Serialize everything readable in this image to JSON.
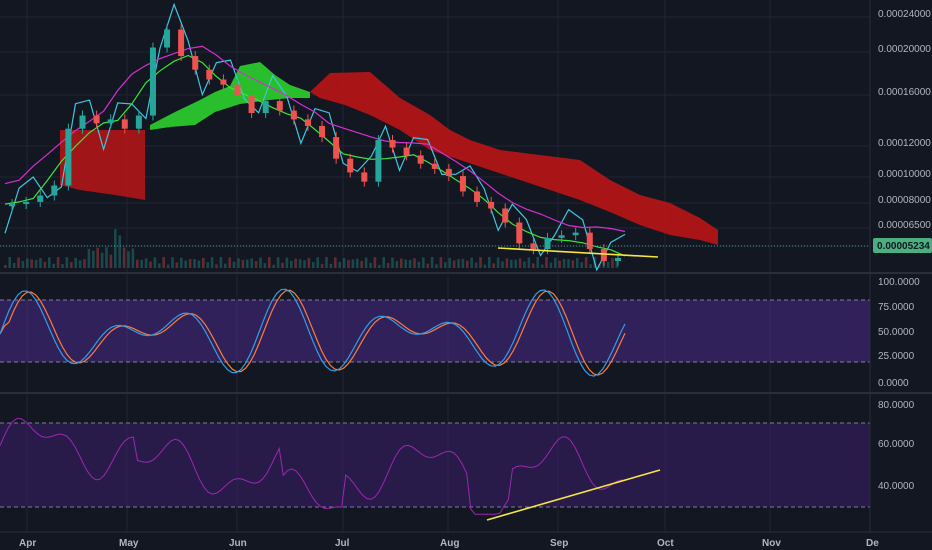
{
  "colors": {
    "background": "#131722",
    "grid": "#1f2433",
    "candle_up": "#26a69a",
    "candle_down": "#ef5350",
    "cloud_bull": "#2cd02c",
    "cloud_bear": "#c41515",
    "tenkan": "#38d9f5",
    "kijun": "#39e639",
    "chikou": "#3fc6e0",
    "senkou_b": "#d330d3",
    "trendline": "#f5e642",
    "stoch_k": "#2f9ee6",
    "stoch_d": "#ff7b39",
    "stoch_band": "#4a2a8a",
    "rsi_line": "#9c27b0",
    "rsi_band": "#3a1f6a",
    "last_price_bg": "#4caf82"
  },
  "chart_data": [
    {
      "id": "price",
      "type": "line",
      "scale": "log",
      "y_ticks": [
        "0.00024000",
        "0.00020000",
        "0.00016000",
        "0.00012000",
        "0.00010000",
        "0.00008000",
        "0.00006500"
      ],
      "last_price_label": "0.00005234",
      "x_ticks": [
        "Apr",
        "May",
        "Jun",
        "Jul",
        "Aug",
        "Sep",
        "Oct",
        "Nov",
        "De"
      ],
      "price_series": [
        7.3e-05,
        7.4e-05,
        7.5e-05,
        7.8e-05,
        8.3e-05,
        0.000118,
        0.000128,
        0.000122,
        0.000125,
        0.000118,
        0.000128,
        0.000195,
        0.000218,
        0.000185,
        0.00017,
        0.00016,
        0.000155,
        0.000145,
        0.00013,
        0.00014,
        0.000132,
        0.000125,
        0.00012,
        0.000112,
        9.8e-05,
        9e-05,
        8.5e-05,
        0.00011,
        0.000105,
        0.0001,
        9.5e-05,
        9.2e-05,
        8.8e-05,
        8e-05,
        7.5e-05,
        7.2e-05,
        6.6e-05,
        5.8e-05,
        5.6e-05,
        6e-05,
        6.1e-05,
        6.2e-05,
        5.6e-05,
        5.2e-05,
        5.3e-05
      ]
    },
    {
      "id": "stochastic",
      "type": "line",
      "y_ticks": [
        "100.0000",
        "75.0000",
        "50.0000",
        "25.0000",
        "0.0000"
      ],
      "ylim": [
        0,
        100
      ],
      "band": [
        20,
        80
      ]
    },
    {
      "id": "rsi",
      "type": "line",
      "y_ticks": [
        "80.0000",
        "60.0000",
        "40.0000"
      ],
      "band": [
        30,
        70
      ]
    }
  ]
}
